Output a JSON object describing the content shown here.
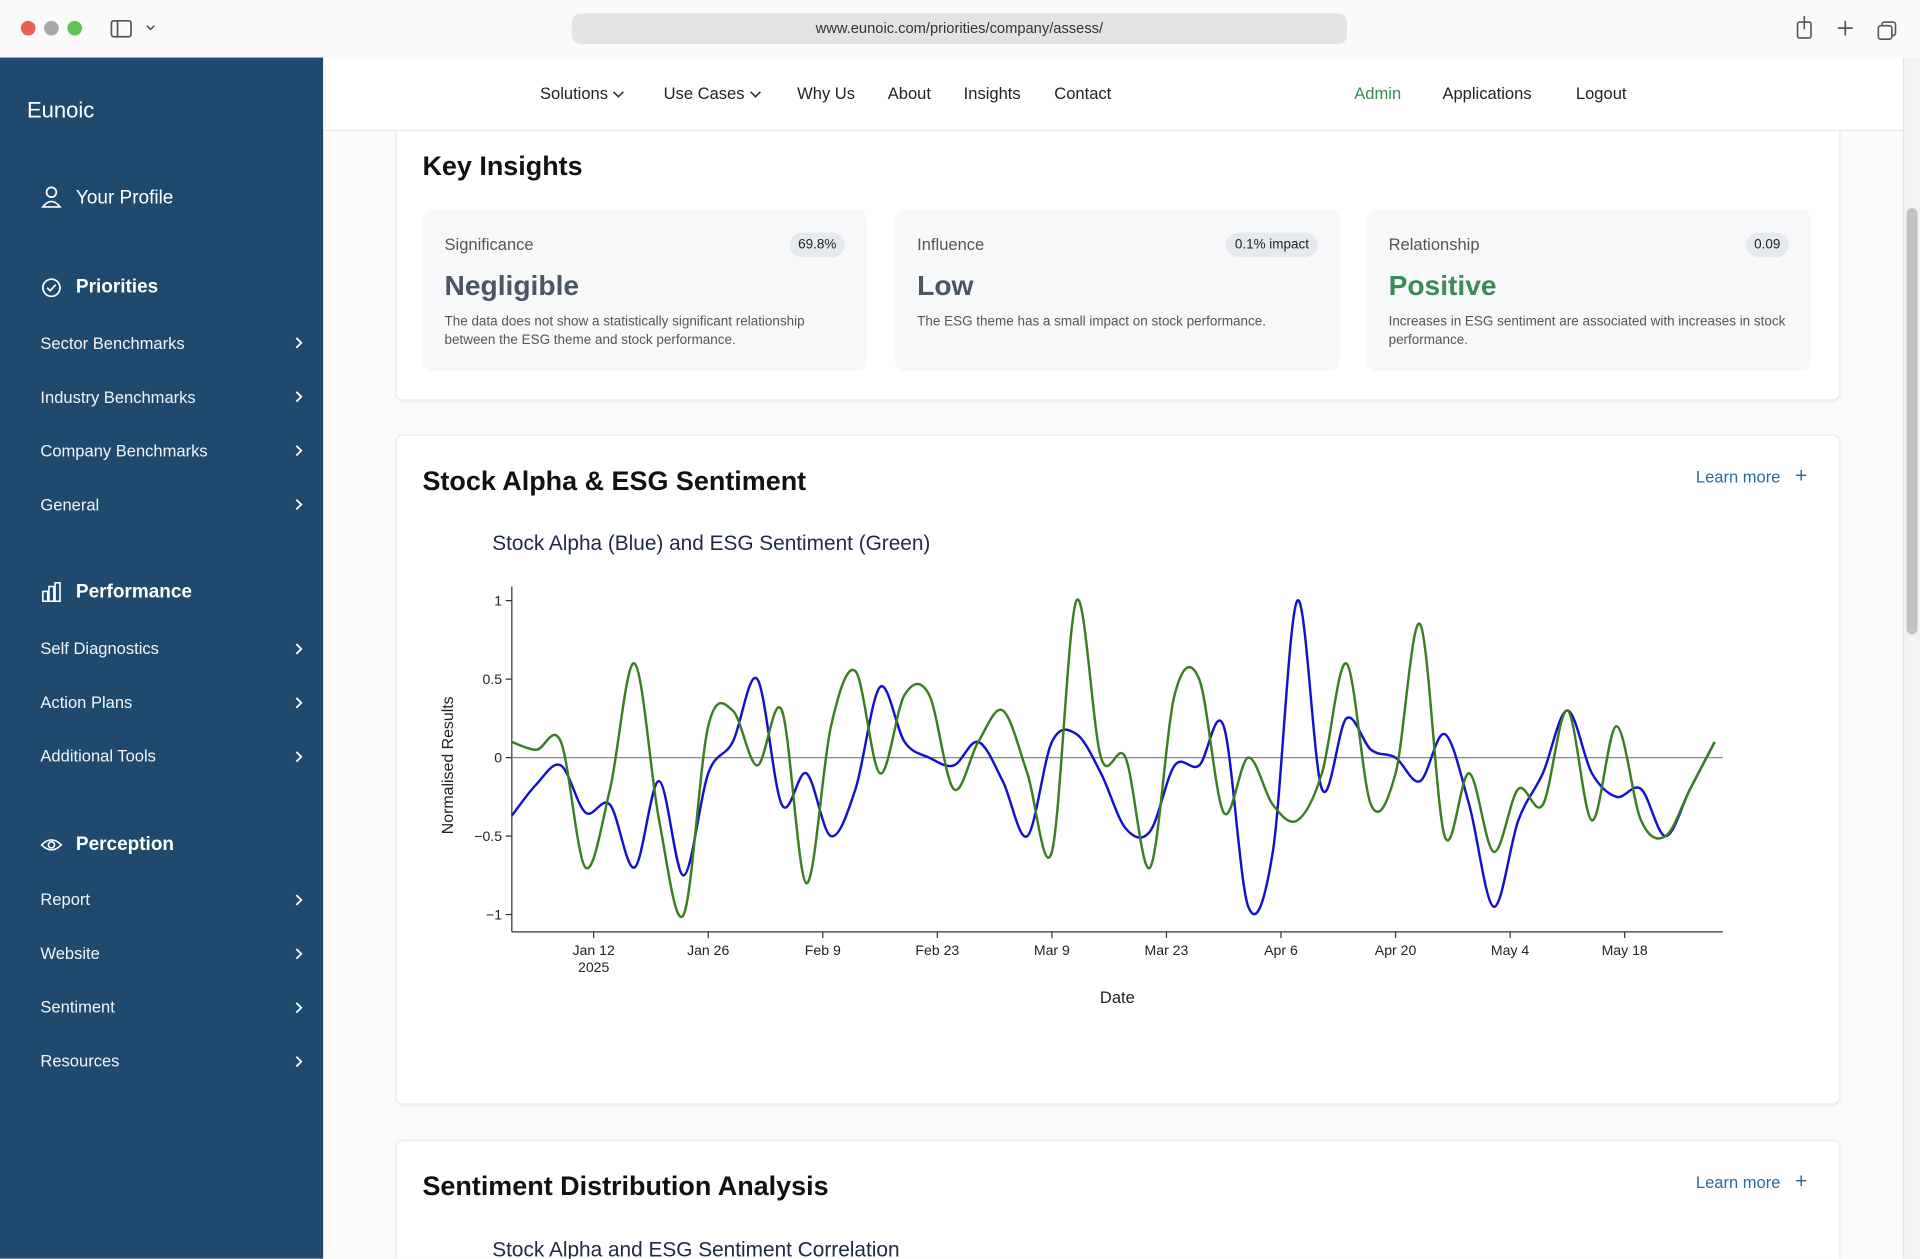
{
  "browser": {
    "url": "www.eunoic.com/priorities/company/assess/"
  },
  "sidebar": {
    "brand": "Eunoic",
    "profile": "Your Profile",
    "sections": [
      {
        "title": "Priorities",
        "items": [
          "Sector Benchmarks",
          "Industry Benchmarks",
          "Company Benchmarks",
          "General"
        ]
      },
      {
        "title": "Performance",
        "items": [
          "Self Diagnostics",
          "Action Plans",
          "Additional Tools"
        ]
      },
      {
        "title": "Perception",
        "items": [
          "Report",
          "Website",
          "Sentiment",
          "Resources"
        ]
      }
    ]
  },
  "nav": {
    "links": [
      "Solutions",
      "Use Cases",
      "Why Us",
      "About",
      "Insights",
      "Contact"
    ],
    "admin": "Admin",
    "applications": "Applications",
    "logout": "Logout"
  },
  "key_insights": {
    "title": "Key Insights",
    "cards": [
      {
        "label": "Significance",
        "badge": "69.8%",
        "value": "Negligible",
        "description": "The data does not show a statistically significant relationship between the ESG theme and stock performance."
      },
      {
        "label": "Influence",
        "badge": "0.1% impact",
        "value": "Low",
        "description": "The ESG theme has a small impact on stock performance."
      },
      {
        "label": "Relationship",
        "badge": "0.09",
        "value": "Positive",
        "description": "Increases in ESG sentiment are associated with increases in stock performance."
      }
    ]
  },
  "chart_panel": {
    "title": "Stock Alpha & ESG Sentiment",
    "learn_more": "Learn more"
  },
  "chart_data": {
    "type": "line",
    "title": "Stock Alpha (Blue) and ESG Sentiment (Green)",
    "x_label": "Date",
    "y_label": "Normalised Results",
    "x": [
      "2025-01-02",
      "2025-01-05",
      "2025-01-08",
      "2025-01-11",
      "2025-01-14",
      "2025-01-17",
      "2025-01-20",
      "2025-01-23",
      "2025-01-26",
      "2025-01-29",
      "2025-02-01",
      "2025-02-04",
      "2025-02-07",
      "2025-02-10",
      "2025-02-13",
      "2025-02-16",
      "2025-02-19",
      "2025-02-22",
      "2025-02-25",
      "2025-02-28",
      "2025-03-03",
      "2025-03-06",
      "2025-03-09",
      "2025-03-12",
      "2025-03-15",
      "2025-03-18",
      "2025-03-21",
      "2025-03-24",
      "2025-03-27",
      "2025-03-30",
      "2025-04-02",
      "2025-04-05",
      "2025-04-08",
      "2025-04-11",
      "2025-04-14",
      "2025-04-17",
      "2025-04-20",
      "2025-04-23",
      "2025-04-26",
      "2025-04-29",
      "2025-05-02",
      "2025-05-05",
      "2025-05-08",
      "2025-05-11",
      "2025-05-14",
      "2025-05-17",
      "2025-05-20",
      "2025-05-23",
      "2025-05-26",
      "2025-05-29"
    ],
    "series": [
      {
        "color": "#1212cc",
        "values": [
          -0.37,
          -0.17,
          -0.05,
          -0.35,
          -0.3,
          -0.7,
          -0.15,
          -0.75,
          -0.1,
          0.1,
          0.5,
          -0.3,
          -0.1,
          -0.5,
          -0.2,
          0.45,
          0.1,
          0,
          -0.05,
          0.1,
          -0.15,
          -0.5,
          0.1,
          0.15,
          -0.1,
          -0.45,
          -0.47,
          -0.05,
          -0.05,
          0.2,
          -0.95,
          -0.6,
          1.0,
          -0.2,
          0.25,
          0.05,
          0,
          -0.15,
          0.15,
          -0.3,
          -0.95,
          -0.4,
          -0.1,
          0.3,
          -0.1,
          -0.25,
          -0.2,
          -0.5,
          -0.2,
          0.1
        ]
      },
      {
        "color": "#3a7d22",
        "values": [
          0.1,
          0.05,
          0.1,
          -0.7,
          -0.2,
          0.6,
          -0.4,
          -1.0,
          0.2,
          0.3,
          -0.05,
          0.3,
          -0.8,
          0.2,
          0.55,
          -0.1,
          0.4,
          0.4,
          -0.2,
          0.1,
          0.3,
          -0.1,
          -0.6,
          1.0,
          0,
          0,
          -0.7,
          0.4,
          0.5,
          -0.35,
          0,
          -0.3,
          -0.4,
          -0.1,
          0.6,
          -0.3,
          -0.1,
          0.85,
          -0.5,
          -0.1,
          -0.6,
          -0.2,
          -0.3,
          0.3,
          -0.4,
          0.2,
          -0.4,
          -0.5,
          -0.2,
          0.1
        ]
      }
    ],
    "xlim": [
      "2025-01-02",
      "2025-05-30"
    ],
    "xticks": [
      {
        "value": "2025-01-12",
        "label": "Jan 12"
      },
      {
        "value": "2025-01-26",
        "label": "Jan 26"
      },
      {
        "value": "2025-02-09",
        "label": "Feb 9"
      },
      {
        "value": "2025-02-23",
        "label": "Feb 23"
      },
      {
        "value": "2025-03-09",
        "label": "Mar 9"
      },
      {
        "value": "2025-03-23",
        "label": "Mar 23"
      },
      {
        "value": "2025-04-06",
        "label": "Apr 6"
      },
      {
        "value": "2025-04-20",
        "label": "Apr 20"
      },
      {
        "value": "2025-05-04",
        "label": "May 4"
      },
      {
        "value": "2025-05-18",
        "label": "May 18"
      }
    ],
    "xtick_year": "2025",
    "ylim": [
      -1.11,
      1.09
    ],
    "yticks": [
      {
        "value": -1,
        "label": "−1"
      },
      {
        "value": -0.5,
        "label": "−0.5"
      },
      0,
      0.5,
      1
    ],
    "zero_line": true
  },
  "distribution": {
    "title": "Sentiment Distribution Analysis",
    "learn_more": "Learn more",
    "chart_title": "Stock Alpha and ESG Sentiment Correlation"
  }
}
